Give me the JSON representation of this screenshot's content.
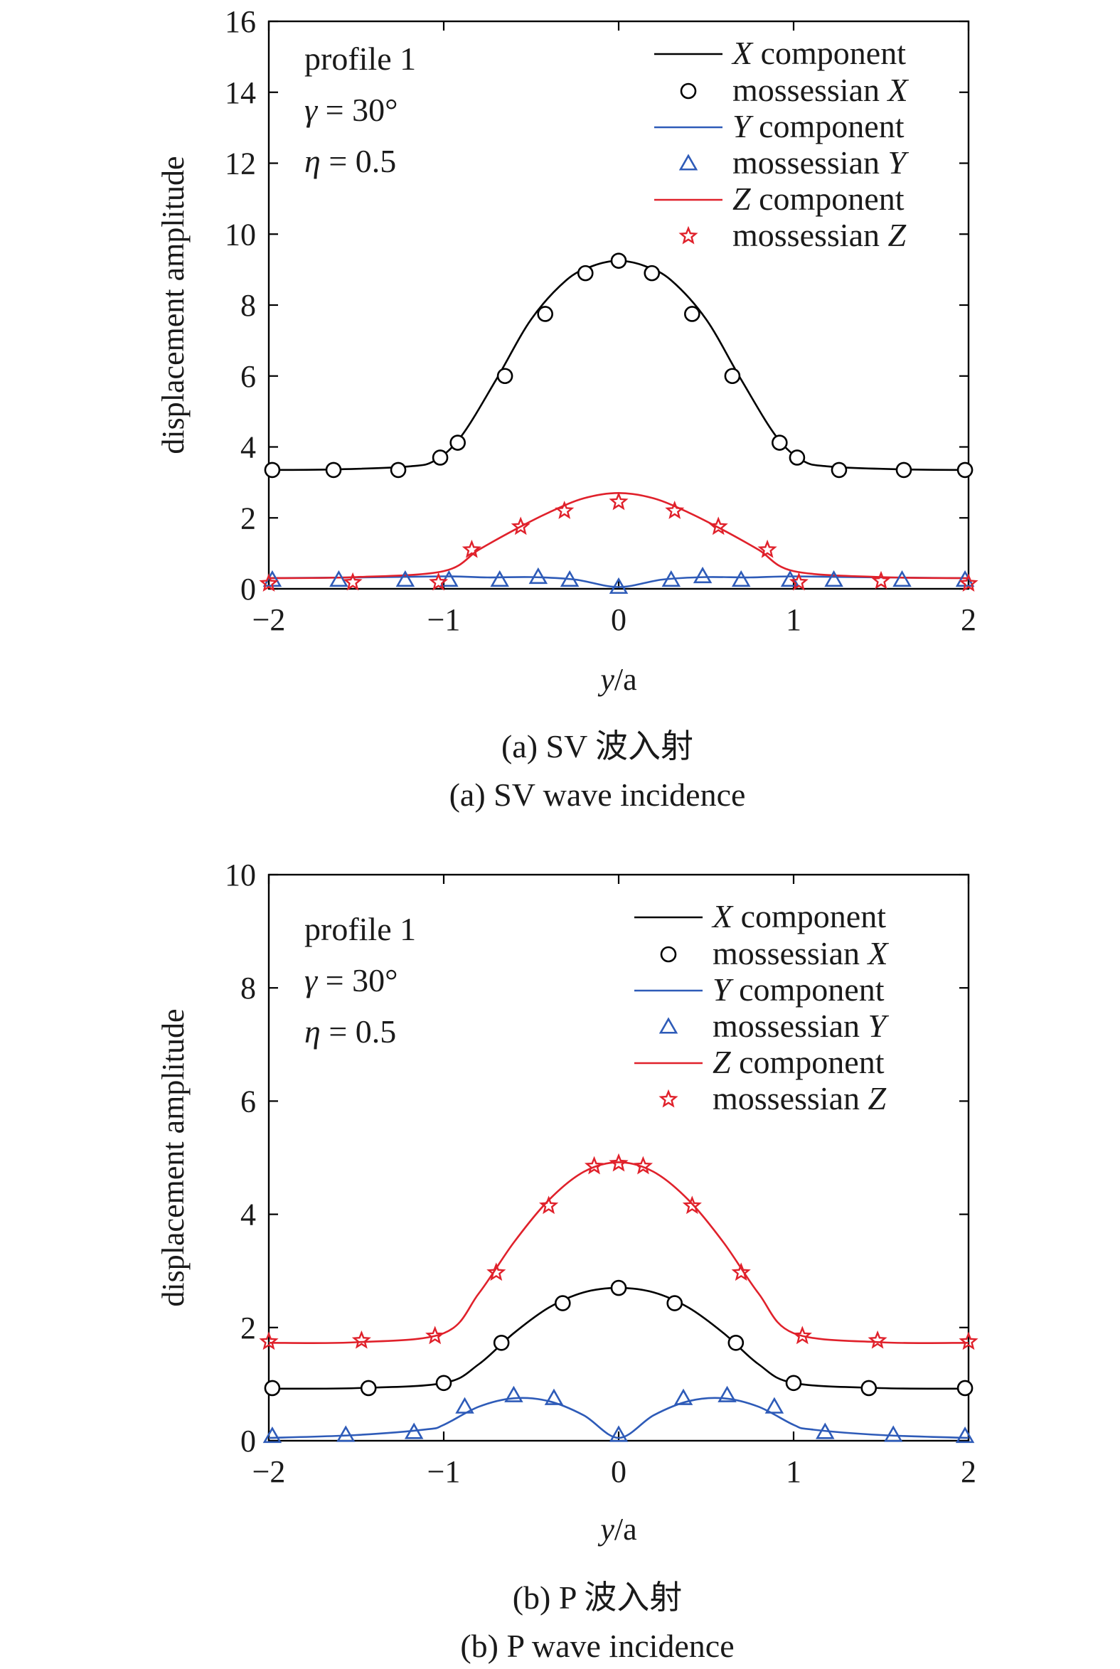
{
  "chart_data": [
    {
      "type": "line",
      "caption_cn": "(a) SV 波入射",
      "caption_en": "(a) SV wave incidence",
      "xlabel_var": "y",
      "xlabel_rest": "/a",
      "ylabel": "displacement amplitude",
      "xlim": [
        -2,
        2
      ],
      "ylim": [
        0,
        16
      ],
      "xticks": [
        "−2",
        "−1",
        "0",
        "1",
        "2"
      ],
      "yticks": [
        "0",
        "2",
        "4",
        "6",
        "8",
        "10",
        "12",
        "14",
        "16"
      ],
      "info": {
        "profile": "profile 1",
        "gamma_sym": "γ",
        "gamma_val": " = 30°",
        "eta_sym": "η",
        "eta_val": " = 0.5"
      },
      "series": [
        {
          "name_var": "X",
          "name_rest": " component",
          "kind": "line",
          "color": "#000000",
          "x": [
            -2,
            -1.6,
            -1.2,
            -1.05,
            -0.9,
            -0.7,
            -0.5,
            -0.3,
            -0.15,
            0,
            0.15,
            0.3,
            0.5,
            0.7,
            0.9,
            1.05,
            1.2,
            1.6,
            2
          ],
          "y": [
            3.35,
            3.37,
            3.45,
            3.62,
            4.3,
            5.9,
            7.6,
            8.7,
            9.1,
            9.25,
            9.1,
            8.7,
            7.6,
            5.9,
            4.3,
            3.62,
            3.45,
            3.37,
            3.35
          ]
        },
        {
          "name_var": "X",
          "name_prefix": "mossessian ",
          "kind": "circle",
          "color": "#000000",
          "x": [
            -1.98,
            -1.63,
            -1.26,
            -1.02,
            -0.92,
            -0.65,
            -0.42,
            -0.19,
            0,
            0.19,
            0.42,
            0.65,
            0.92,
            1.02,
            1.26,
            1.63,
            1.98
          ],
          "y": [
            3.35,
            3.35,
            3.35,
            3.7,
            4.12,
            6.0,
            7.75,
            8.9,
            9.25,
            8.9,
            7.75,
            6.0,
            4.12,
            3.7,
            3.35,
            3.35,
            3.35
          ]
        },
        {
          "name_var": "Y",
          "name_rest": " component",
          "kind": "line",
          "color": "#2e5bb8",
          "x": [
            -2,
            -1.5,
            -1.0,
            -0.75,
            -0.5,
            -0.25,
            0,
            0.25,
            0.5,
            0.75,
            1.0,
            1.5,
            2
          ],
          "y": [
            0.3,
            0.32,
            0.35,
            0.32,
            0.33,
            0.26,
            0.05,
            0.26,
            0.33,
            0.32,
            0.35,
            0.32,
            0.3
          ]
        },
        {
          "name_var": "Y",
          "name_prefix": "mossessian ",
          "kind": "triangle",
          "color": "#2e5bb8",
          "x": [
            -1.98,
            -1.6,
            -1.22,
            -0.97,
            -0.68,
            -0.46,
            -0.28,
            0,
            0.3,
            0.48,
            0.7,
            0.98,
            1.23,
            1.62,
            1.98
          ],
          "y": [
            0.25,
            0.25,
            0.25,
            0.25,
            0.25,
            0.33,
            0.25,
            0.05,
            0.25,
            0.35,
            0.25,
            0.25,
            0.25,
            0.25,
            0.25
          ]
        },
        {
          "name_var": "Z",
          "name_rest": " component",
          "kind": "line",
          "color": "#e0212b",
          "x": [
            -2,
            -1.5,
            -1.0,
            -0.8,
            -0.6,
            -0.4,
            -0.2,
            0,
            0.2,
            0.4,
            0.6,
            0.8,
            1.0,
            1.5,
            2
          ],
          "y": [
            0.3,
            0.33,
            0.5,
            1.1,
            1.65,
            2.15,
            2.55,
            2.7,
            2.55,
            2.15,
            1.65,
            1.1,
            0.5,
            0.33,
            0.3
          ]
        },
        {
          "name_var": "Z",
          "name_prefix": "mossessian ",
          "kind": "star",
          "color": "#e0212b",
          "x": [
            -2,
            -1.52,
            -1.03,
            -0.84,
            -0.56,
            -0.31,
            0,
            0.32,
            0.57,
            0.85,
            1.03,
            1.5,
            2
          ],
          "y": [
            0.15,
            0.18,
            0.18,
            1.1,
            1.75,
            2.2,
            2.45,
            2.2,
            1.75,
            1.1,
            0.18,
            0.22,
            0.15
          ]
        }
      ]
    },
    {
      "type": "line",
      "caption_cn": "(b) P 波入射",
      "caption_en": "(b) P wave incidence",
      "xlabel_var": "y",
      "xlabel_rest": "/a",
      "ylabel": "displacement amplitude",
      "xlim": [
        -2,
        2
      ],
      "ylim": [
        0,
        10
      ],
      "xticks": [
        "−2",
        "−1",
        "0",
        "1",
        "2"
      ],
      "yticks": [
        "0",
        "2",
        "4",
        "6",
        "8",
        "10"
      ],
      "info": {
        "profile": "profile 1",
        "gamma_sym": "γ",
        "gamma_val": " = 30°",
        "eta_sym": "η",
        "eta_val": " = 0.5"
      },
      "series": [
        {
          "name_var": "X",
          "name_rest": " component",
          "kind": "line",
          "color": "#000000",
          "x": [
            -2,
            -1.5,
            -1.0,
            -0.8,
            -0.6,
            -0.4,
            -0.2,
            0,
            0.2,
            0.4,
            0.6,
            0.8,
            1.0,
            1.5,
            2
          ],
          "y": [
            0.92,
            0.93,
            1.02,
            1.35,
            1.9,
            2.35,
            2.62,
            2.7,
            2.62,
            2.35,
            1.9,
            1.35,
            1.02,
            0.93,
            0.92
          ]
        },
        {
          "name_var": "X",
          "name_prefix": "mossessian ",
          "kind": "circle",
          "color": "#000000",
          "x": [
            -1.98,
            -1.43,
            -1.0,
            -0.67,
            -0.32,
            0,
            0.32,
            0.67,
            1.0,
            1.43,
            1.98
          ],
          "y": [
            0.93,
            0.93,
            1.02,
            1.73,
            2.43,
            2.7,
            2.43,
            1.73,
            1.02,
            0.93,
            0.93
          ]
        },
        {
          "name_var": "Y",
          "name_rest": " component",
          "kind": "line",
          "color": "#2e5bb8",
          "x": [
            -2,
            -1.5,
            -1.1,
            -1.0,
            -0.8,
            -0.6,
            -0.4,
            -0.2,
            0,
            0.2,
            0.4,
            0.6,
            0.8,
            1.0,
            1.1,
            1.5,
            2
          ],
          "y": [
            0.05,
            0.1,
            0.2,
            0.28,
            0.6,
            0.75,
            0.7,
            0.45,
            0.05,
            0.45,
            0.7,
            0.75,
            0.6,
            0.28,
            0.2,
            0.1,
            0.05
          ]
        },
        {
          "name_var": "Y",
          "name_prefix": "mossessian ",
          "kind": "triangle",
          "color": "#2e5bb8",
          "x": [
            -1.98,
            -1.56,
            -1.17,
            -0.88,
            -0.6,
            -0.37,
            0,
            0.37,
            0.62,
            0.89,
            1.18,
            1.57,
            1.98
          ],
          "y": [
            0.08,
            0.1,
            0.15,
            0.6,
            0.8,
            0.75,
            0.1,
            0.75,
            0.8,
            0.6,
            0.15,
            0.1,
            0.08
          ]
        },
        {
          "name_var": "Z",
          "name_rest": " component",
          "kind": "line",
          "color": "#e0212b",
          "x": [
            -2,
            -1.5,
            -1.0,
            -0.8,
            -0.6,
            -0.4,
            -0.2,
            0,
            0.2,
            0.4,
            0.6,
            0.8,
            1.0,
            1.5,
            2
          ],
          "y": [
            1.73,
            1.74,
            1.9,
            2.6,
            3.5,
            4.25,
            4.75,
            4.92,
            4.75,
            4.25,
            3.5,
            2.6,
            1.9,
            1.74,
            1.73
          ]
        },
        {
          "name_var": "Z",
          "name_prefix": "mossessian ",
          "kind": "star",
          "color": "#e0212b",
          "x": [
            -2,
            -1.47,
            -1.05,
            -0.7,
            -0.4,
            -0.14,
            0,
            0.14,
            0.42,
            0.7,
            1.05,
            1.48,
            2
          ],
          "y": [
            1.75,
            1.77,
            1.85,
            2.97,
            4.15,
            4.85,
            4.9,
            4.85,
            4.15,
            2.97,
            1.85,
            1.77,
            1.75
          ]
        }
      ]
    }
  ]
}
